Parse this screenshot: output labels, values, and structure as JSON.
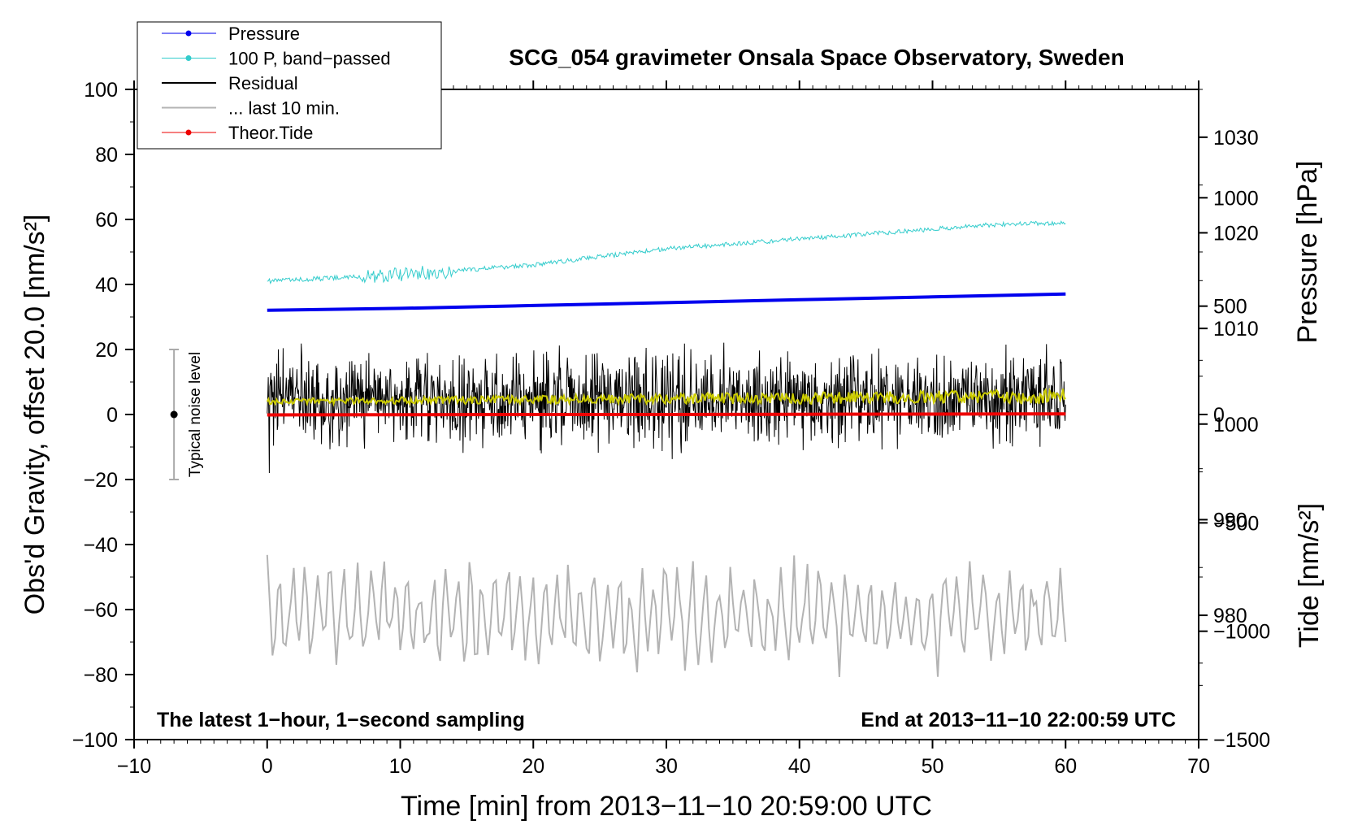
{
  "chart_data": {
    "type": "line",
    "title": "SCG_054 gravimeter Onsala Space Observatory, Sweden",
    "xlabel": "Time [min] from 2013−11−10 20:59:00 UTC",
    "ylabel_left": "Obs'd Gravity, offset 20.0 [nm/s²]",
    "ylabel_right_pressure": "Pressure [hPa]",
    "ylabel_right_tide": "Tide [nm/s²]",
    "xlim": [
      -10,
      70
    ],
    "ylim_left": [
      -100,
      100
    ],
    "ylim_pressure": [
      967,
      1035
    ],
    "ylim_tide": [
      -1500,
      1500
    ],
    "xticks": [
      {
        "value": -10,
        "label": "−10"
      },
      {
        "value": 0,
        "label": "0"
      },
      {
        "value": 10,
        "label": "10"
      },
      {
        "value": 20,
        "label": "20"
      },
      {
        "value": 30,
        "label": "30"
      },
      {
        "value": 40,
        "label": "40"
      },
      {
        "value": 50,
        "label": "50"
      },
      {
        "value": 60,
        "label": "60"
      },
      {
        "value": 70,
        "label": "70"
      }
    ],
    "yticks_left": [
      {
        "value": 100,
        "label": "100"
      },
      {
        "value": 80,
        "label": "80"
      },
      {
        "value": 60,
        "label": "60"
      },
      {
        "value": 40,
        "label": "40"
      },
      {
        "value": 20,
        "label": "20"
      },
      {
        "value": 0,
        "label": "0"
      },
      {
        "value": -20,
        "label": "−20"
      },
      {
        "value": -40,
        "label": "−40"
      },
      {
        "value": -60,
        "label": "−60"
      },
      {
        "value": -80,
        "label": "−80"
      },
      {
        "value": -100,
        "label": "−100"
      }
    ],
    "yticks_pressure": [
      {
        "value": 1030,
        "label": "1030"
      },
      {
        "value": 1020,
        "label": "1020"
      },
      {
        "value": 1010,
        "label": "1010"
      },
      {
        "value": 1000,
        "label": "1000"
      },
      {
        "value": 990,
        "label": "990"
      },
      {
        "value": 980,
        "label": "980"
      }
    ],
    "yticks_tide": [
      {
        "value": 1000,
        "label": "1000"
      },
      {
        "value": 500,
        "label": "500"
      },
      {
        "value": 0,
        "label": "0"
      },
      {
        "value": -500,
        "label": "−500"
      },
      {
        "value": -1000,
        "label": "−1000"
      },
      {
        "value": -1500,
        "label": "−1500"
      }
    ],
    "legend": [
      {
        "label": "Pressure",
        "color": "#0000ee",
        "style": "line-dot"
      },
      {
        "label": "100 P, band−passed",
        "color": "#33cccc",
        "style": "line-dot"
      },
      {
        "label": "Residual",
        "color": "#000000",
        "style": "line"
      },
      {
        "label": "... last 10 min.",
        "color": "#b3b3b3",
        "style": "line"
      },
      {
        "label": "Theor.Tide",
        "color": "#ee0000",
        "style": "line-dot"
      }
    ],
    "legend_position": "top-left",
    "noise_marker": {
      "label": "Typical noise level",
      "x": -7,
      "center": 0,
      "low": -20,
      "high": 20
    },
    "note_left": "The latest 1−hour, 1−second sampling",
    "note_right": "End at 2013−11−10 22:00:59 UTC",
    "series": [
      {
        "name": "Pressure",
        "axis": "pressure",
        "color": "#0000ee",
        "x": [
          0,
          10,
          20,
          30,
          40,
          50,
          60
        ],
        "y": [
          1011.9,
          1012.1,
          1012.4,
          1012.7,
          1013.0,
          1013.3,
          1013.6
        ]
      },
      {
        "name": "100 P, band−passed",
        "axis": "left",
        "color": "#33cccc",
        "x": [
          0,
          5,
          10,
          15,
          20,
          25,
          30,
          35,
          40,
          45,
          50,
          55,
          60
        ],
        "y": [
          41,
          42,
          43,
          44.5,
          46,
          48.5,
          51,
          52.5,
          54,
          55.5,
          57,
          58.5,
          59
        ]
      },
      {
        "name": "Residual",
        "axis": "left",
        "color": "#000000",
        "x": [
          0,
          10,
          20,
          30,
          40,
          50,
          60
        ],
        "y": [
          4,
          4.5,
          4.5,
          5,
          5,
          5.5,
          5
        ],
        "peak_min": -18,
        "peak_max": 27
      },
      {
        "name": "Residual (smoothed)",
        "axis": "left",
        "color": "#cccc00",
        "x": [
          0,
          10,
          20,
          30,
          40,
          50,
          60
        ],
        "y": [
          4,
          4.3,
          4.6,
          4.9,
          5.1,
          5.4,
          5.6
        ]
      },
      {
        "name": "... last 10 min.",
        "axis": "left",
        "color": "#b3b3b3",
        "x": [
          0,
          60
        ],
        "y": [
          -62,
          -62
        ],
        "range_min": -82,
        "range_max": -40
      },
      {
        "name": "Theor.Tide",
        "axis": "tide",
        "color": "#ee0000",
        "x": [
          0,
          10,
          20,
          30,
          40,
          50,
          60
        ],
        "y": [
          -2,
          -1,
          0,
          0,
          1,
          2,
          3
        ]
      }
    ]
  }
}
